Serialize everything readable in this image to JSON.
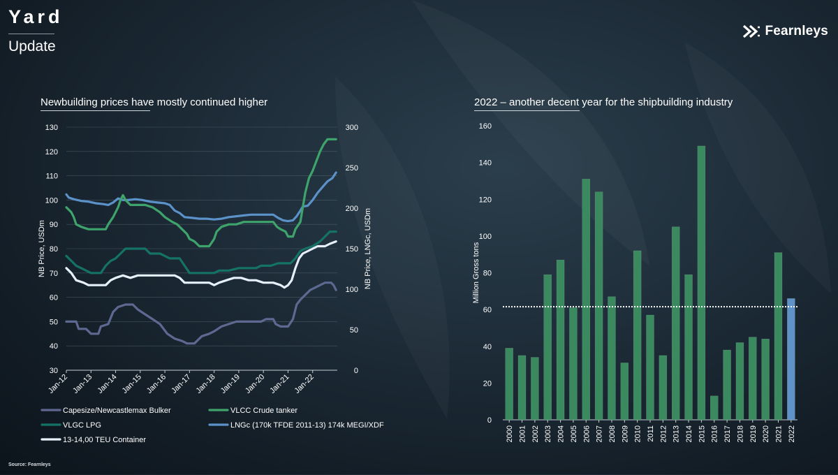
{
  "header": {
    "title": "Yard",
    "subtitle": "Update"
  },
  "logo": {
    "name": "Fearnleys",
    "icon": "fearnleys-logo-icon"
  },
  "source": "Source: Fearnleys",
  "colors": {
    "capesize": "#5f6890",
    "vlcc": "#3fa36c",
    "vlgc": "#157366",
    "lngc": "#5b92c9",
    "container": "#e6f0fa",
    "bar_green": "#3b8a5f",
    "bar_blue": "#5f93c8",
    "axis_text": "#ffffff",
    "grid": "#6e7c88"
  },
  "chart_data": [
    {
      "type": "line",
      "title": "Newbuilding prices have mostly continued higher",
      "ylabel": "NB Price, USDm",
      "y2label": "NB Price, LNGc, USDm",
      "ylim": [
        30,
        130
      ],
      "yticks": [
        30,
        40,
        50,
        60,
        70,
        80,
        90,
        100,
        110,
        120,
        130
      ],
      "y2lim": [
        0,
        300
      ],
      "y2ticks": [
        0,
        50,
        100,
        150,
        200,
        250,
        300
      ],
      "xlim": [
        "Jan-12",
        "Jan-23"
      ],
      "x_tick_labels": [
        "Jan-12",
        "Jan-13",
        "Jan-14",
        "Jan-15",
        "Jan-16",
        "Jan-17",
        "Jan-18",
        "Jan-19",
        "Jan-20",
        "Jan-21",
        "Jan-22"
      ],
      "x_tick_years": [
        2012,
        2013,
        2014,
        2015,
        2016,
        2017,
        2018,
        2019,
        2020,
        2021,
        2022
      ],
      "series": [
        {
          "name": "Capesize/Newcastlemax Bulker",
          "key": "capesize",
          "axis": "left",
          "points": [
            [
              2012.0,
              50
            ],
            [
              2012.4,
              50
            ],
            [
              2012.5,
              47
            ],
            [
              2012.8,
              47
            ],
            [
              2013.0,
              45
            ],
            [
              2013.3,
              45
            ],
            [
              2013.4,
              48
            ],
            [
              2013.7,
              49
            ],
            [
              2013.9,
              54
            ],
            [
              2014.1,
              56
            ],
            [
              2014.4,
              57
            ],
            [
              2014.7,
              57
            ],
            [
              2014.9,
              55
            ],
            [
              2015.2,
              53
            ],
            [
              2015.5,
              51
            ],
            [
              2015.8,
              49
            ],
            [
              2016.1,
              45
            ],
            [
              2016.4,
              43
            ],
            [
              2016.7,
              42
            ],
            [
              2016.9,
              41
            ],
            [
              2017.2,
              41
            ],
            [
              2017.5,
              44
            ],
            [
              2017.8,
              45
            ],
            [
              2018.0,
              46
            ],
            [
              2018.3,
              48
            ],
            [
              2018.6,
              49
            ],
            [
              2018.9,
              50
            ],
            [
              2019.2,
              50
            ],
            [
              2019.6,
              50
            ],
            [
              2019.9,
              50
            ],
            [
              2020.1,
              51
            ],
            [
              2020.4,
              51
            ],
            [
              2020.5,
              49
            ],
            [
              2020.7,
              48
            ],
            [
              2021.0,
              48
            ],
            [
              2021.2,
              51
            ],
            [
              2021.35,
              57
            ],
            [
              2021.5,
              59
            ],
            [
              2021.7,
              61
            ],
            [
              2021.9,
              63
            ],
            [
              2022.1,
              64
            ],
            [
              2022.3,
              65
            ],
            [
              2022.5,
              66
            ],
            [
              2022.75,
              66
            ],
            [
              2022.85,
              65
            ],
            [
              2022.95,
              63
            ]
          ]
        },
        {
          "name": "VLCC Crude tanker",
          "key": "vlcc",
          "axis": "left",
          "points": [
            [
              2012.0,
              97
            ],
            [
              2012.2,
              95
            ],
            [
              2012.3,
              93
            ],
            [
              2012.4,
              90
            ],
            [
              2012.6,
              89
            ],
            [
              2012.9,
              88
            ],
            [
              2013.2,
              88
            ],
            [
              2013.6,
              88
            ],
            [
              2013.7,
              90
            ],
            [
              2013.9,
              93
            ],
            [
              2014.1,
              97
            ],
            [
              2014.2,
              100
            ],
            [
              2014.3,
              102
            ],
            [
              2014.4,
              100
            ],
            [
              2014.6,
              98
            ],
            [
              2014.9,
              98
            ],
            [
              2015.2,
              98
            ],
            [
              2015.5,
              97
            ],
            [
              2015.8,
              95
            ],
            [
              2016.0,
              93
            ],
            [
              2016.3,
              91
            ],
            [
              2016.5,
              90
            ],
            [
              2016.7,
              88
            ],
            [
              2016.9,
              86
            ],
            [
              2017.0,
              84
            ],
            [
              2017.2,
              83
            ],
            [
              2017.4,
              81
            ],
            [
              2017.6,
              81
            ],
            [
              2017.8,
              81
            ],
            [
              2018.0,
              84
            ],
            [
              2018.1,
              87
            ],
            [
              2018.3,
              89
            ],
            [
              2018.6,
              90
            ],
            [
              2018.9,
              90
            ],
            [
              2019.2,
              91
            ],
            [
              2019.5,
              91
            ],
            [
              2019.8,
              91
            ],
            [
              2020.1,
              91
            ],
            [
              2020.4,
              91
            ],
            [
              2020.55,
              89
            ],
            [
              2020.7,
              88
            ],
            [
              2020.9,
              87
            ],
            [
              2021.0,
              85
            ],
            [
              2021.2,
              85
            ],
            [
              2021.3,
              88
            ],
            [
              2021.5,
              91
            ],
            [
              2021.6,
              97
            ],
            [
              2021.7,
              103
            ],
            [
              2021.85,
              109
            ],
            [
              2022.0,
              112
            ],
            [
              2022.15,
              116
            ],
            [
              2022.3,
              120
            ],
            [
              2022.45,
              123
            ],
            [
              2022.6,
              125
            ],
            [
              2022.8,
              125
            ],
            [
              2022.95,
              125
            ]
          ]
        },
        {
          "name": "VLGC LPG",
          "key": "vlgc",
          "axis": "left",
          "points": [
            [
              2012.0,
              77
            ],
            [
              2012.2,
              75
            ],
            [
              2012.4,
              73
            ],
            [
              2012.6,
              72
            ],
            [
              2012.8,
              71
            ],
            [
              2013.0,
              70
            ],
            [
              2013.4,
              70
            ],
            [
              2013.6,
              73
            ],
            [
              2013.8,
              75
            ],
            [
              2014.0,
              76
            ],
            [
              2014.2,
              78
            ],
            [
              2014.4,
              80
            ],
            [
              2014.8,
              80
            ],
            [
              2015.2,
              80
            ],
            [
              2015.4,
              78
            ],
            [
              2015.8,
              78
            ],
            [
              2016.0,
              77
            ],
            [
              2016.2,
              76
            ],
            [
              2016.6,
              76
            ],
            [
              2016.8,
              73
            ],
            [
              2017.0,
              70
            ],
            [
              2017.4,
              70
            ],
            [
              2017.8,
              70
            ],
            [
              2018.0,
              70
            ],
            [
              2018.2,
              71
            ],
            [
              2018.6,
              71
            ],
            [
              2019.0,
              72
            ],
            [
              2019.4,
              72
            ],
            [
              2019.7,
              72
            ],
            [
              2019.9,
              73
            ],
            [
              2020.3,
              73
            ],
            [
              2020.6,
              74
            ],
            [
              2020.9,
              74
            ],
            [
              2021.1,
              74
            ],
            [
              2021.3,
              76
            ],
            [
              2021.5,
              79
            ],
            [
              2021.7,
              80
            ],
            [
              2022.0,
              81
            ],
            [
              2022.3,
              83
            ],
            [
              2022.5,
              85
            ],
            [
              2022.7,
              87
            ],
            [
              2022.95,
              87
            ]
          ]
        },
        {
          "name": "LNGc (170k TFDE 2011-13) 174k MEGI/XDF",
          "key": "lngc",
          "axis": "right",
          "points": [
            [
              2012.0,
              217
            ],
            [
              2012.1,
              213
            ],
            [
              2012.3,
              211
            ],
            [
              2012.6,
              209
            ],
            [
              2012.9,
              208
            ],
            [
              2013.2,
              206
            ],
            [
              2013.5,
              205
            ],
            [
              2013.7,
              204
            ],
            [
              2013.9,
              207
            ],
            [
              2014.1,
              212
            ],
            [
              2014.3,
              210
            ],
            [
              2014.5,
              210
            ],
            [
              2014.8,
              211
            ],
            [
              2015.1,
              210
            ],
            [
              2015.4,
              208
            ],
            [
              2015.7,
              207
            ],
            [
              2016.0,
              206
            ],
            [
              2016.2,
              204
            ],
            [
              2016.4,
              197
            ],
            [
              2016.6,
              194
            ],
            [
              2016.8,
              189
            ],
            [
              2017.1,
              188
            ],
            [
              2017.4,
              187
            ],
            [
              2017.7,
              187
            ],
            [
              2018.0,
              186
            ],
            [
              2018.3,
              187
            ],
            [
              2018.6,
              189
            ],
            [
              2018.9,
              190
            ],
            [
              2019.2,
              191
            ],
            [
              2019.5,
              192
            ],
            [
              2019.8,
              192
            ],
            [
              2020.1,
              192
            ],
            [
              2020.4,
              192
            ],
            [
              2020.6,
              188
            ],
            [
              2020.8,
              185
            ],
            [
              2021.0,
              184
            ],
            [
              2021.2,
              185
            ],
            [
              2021.35,
              190
            ],
            [
              2021.5,
              197
            ],
            [
              2021.6,
              202
            ],
            [
              2021.8,
              203
            ],
            [
              2022.0,
              210
            ],
            [
              2022.2,
              219
            ],
            [
              2022.4,
              226
            ],
            [
              2022.6,
              233
            ],
            [
              2022.8,
              237
            ],
            [
              2022.95,
              244
            ]
          ]
        },
        {
          "name": "13-14,00 TEU Container",
          "key": "container",
          "axis": "left",
          "points": [
            [
              2012.0,
              72
            ],
            [
              2012.2,
              70
            ],
            [
              2012.4,
              67
            ],
            [
              2012.7,
              66
            ],
            [
              2012.9,
              65
            ],
            [
              2013.2,
              65
            ],
            [
              2013.6,
              65
            ],
            [
              2013.8,
              67
            ],
            [
              2014.0,
              68
            ],
            [
              2014.3,
              69
            ],
            [
              2014.6,
              68
            ],
            [
              2014.9,
              69
            ],
            [
              2015.2,
              69
            ],
            [
              2015.6,
              69
            ],
            [
              2016.0,
              69
            ],
            [
              2016.4,
              69
            ],
            [
              2016.6,
              68
            ],
            [
              2016.8,
              66
            ],
            [
              2017.0,
              66
            ],
            [
              2017.4,
              66
            ],
            [
              2017.8,
              66
            ],
            [
              2018.0,
              65
            ],
            [
              2018.2,
              66
            ],
            [
              2018.5,
              67
            ],
            [
              2018.8,
              68
            ],
            [
              2019.1,
              68
            ],
            [
              2019.4,
              67
            ],
            [
              2019.7,
              67
            ],
            [
              2020.0,
              66
            ],
            [
              2020.4,
              66
            ],
            [
              2020.7,
              65
            ],
            [
              2020.85,
              64
            ],
            [
              2021.0,
              65
            ],
            [
              2021.15,
              67
            ],
            [
              2021.3,
              72
            ],
            [
              2021.45,
              76
            ],
            [
              2021.6,
              78
            ],
            [
              2021.8,
              79
            ],
            [
              2022.0,
              80
            ],
            [
              2022.2,
              81
            ],
            [
              2022.5,
              81
            ],
            [
              2022.7,
              82
            ],
            [
              2022.95,
              83
            ]
          ]
        }
      ]
    },
    {
      "type": "bar",
      "title": "2022 – another decent year for the shipbuilding industry",
      "ylabel": "Million Gross tons",
      "ylim": [
        0,
        160
      ],
      "yticks": [
        0,
        20,
        40,
        60,
        80,
        100,
        120,
        140,
        160
      ],
      "categories": [
        "2000",
        "2001",
        "2002",
        "2003",
        "2004",
        "2005",
        "2006",
        "2007",
        "2008",
        "2009",
        "2010",
        "2011",
        "2012",
        "2013",
        "2014",
        "2015",
        "2016",
        "2017",
        "2018",
        "2019",
        "2020",
        "2021",
        "2022"
      ],
      "values": [
        39,
        35,
        34,
        79,
        87,
        61,
        131,
        124,
        67,
        31,
        92,
        57,
        35,
        105,
        79,
        149,
        13,
        38,
        42,
        45,
        44,
        91,
        66
      ],
      "highlight_category": "2022",
      "reference_line": 61.5
    }
  ]
}
